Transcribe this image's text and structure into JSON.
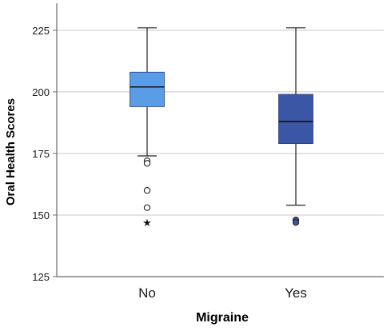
{
  "chart_data": {
    "type": "boxplot",
    "title": "",
    "xlabel": "Migraine",
    "ylabel": "Oral Health Scores",
    "ylim": [
      125,
      236
    ],
    "yticks": [
      125,
      150,
      175,
      200,
      225
    ],
    "grid": true,
    "categories": [
      "No",
      "Yes"
    ],
    "boxes": [
      {
        "category": "No",
        "color": "#5b9ce6",
        "whisker_low": 174,
        "q1": 194,
        "median": 202,
        "q3": 208,
        "whisker_high": 226,
        "outliers": [
          172,
          171,
          160,
          153
        ],
        "extremes": [
          147
        ]
      },
      {
        "category": "Yes",
        "color": "#3a56a4",
        "whisker_low": 154,
        "q1": 179,
        "median": 188,
        "q3": 199,
        "whisker_high": 226,
        "outliers": [
          148,
          147
        ],
        "extremes": []
      }
    ]
  }
}
